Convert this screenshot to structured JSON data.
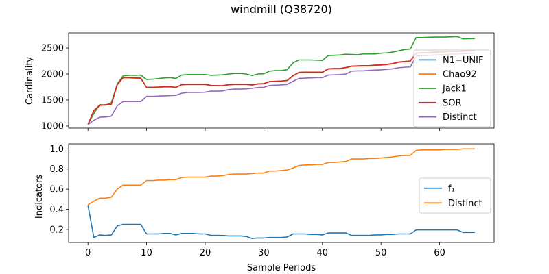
{
  "chart_data": {
    "title": "windmill (Q38720)",
    "xlabel": "Sample Periods",
    "x_ticks": [
      0,
      10,
      20,
      30,
      40,
      50,
      60
    ],
    "xlim": [
      -3.3,
      69.3
    ],
    "panels": [
      {
        "type": "line",
        "ylabel": "Cardinality",
        "ylim": [
          960,
          2790
        ],
        "y_ticks": [
          1000,
          1500,
          2000,
          2500
        ],
        "legend_position": "center-right",
        "grid": false,
        "series": [
          {
            "name": "N1−UNIF",
            "color": "#1f77b4",
            "x": [
              0,
              1,
              2,
              3,
              4,
              5,
              6,
              7,
              8,
              9,
              10,
              11,
              12,
              13,
              14,
              15,
              16,
              17,
              18,
              19,
              20,
              21,
              22,
              23,
              24,
              25,
              26,
              27,
              28,
              29,
              30,
              31,
              32,
              33,
              34,
              35,
              36,
              37,
              38,
              39,
              40,
              41,
              42,
              43,
              44,
              45,
              46,
              47,
              48,
              49,
              50,
              51,
              52,
              53,
              54,
              55,
              56,
              57,
              58,
              59,
              60,
              61,
              62,
              63,
              64,
              65,
              66
            ],
            "values": [
              1030,
              1280,
              1400,
              1410,
              1420,
              1800,
              1930,
              1930,
              1920,
              1920,
              1745,
              1745,
              1745,
              1755,
              1755,
              1745,
              1795,
              1800,
              1800,
              1800,
              1800,
              1780,
              1775,
              1775,
              1795,
              1800,
              1800,
              1800,
              1790,
              1810,
              1815,
              1855,
              1860,
              1865,
              1875,
              1970,
              2030,
              2035,
              2035,
              2035,
              2035,
              2100,
              2105,
              2105,
              2125,
              2150,
              2155,
              2160,
              2160,
              2170,
              2175,
              2185,
              2200,
              2230,
              2240,
              2250,
              2400,
              2410,
              2410,
              2420,
              2425,
              2430,
              2435,
              2435,
              2440,
              2445,
              2445
            ]
          },
          {
            "name": "Chao92",
            "color": "#ff7f0e",
            "x": [
              0,
              1,
              2,
              3,
              4,
              5,
              6,
              7,
              8,
              9,
              10,
              11,
              12,
              13,
              14,
              15,
              16,
              17,
              18,
              19,
              20,
              21,
              22,
              23,
              24,
              25,
              26,
              27,
              28,
              29,
              30,
              31,
              32,
              33,
              34,
              35,
              36,
              37,
              38,
              39,
              40,
              41,
              42,
              43,
              44,
              45,
              46,
              47,
              48,
              49,
              50,
              51,
              52,
              53,
              54,
              55,
              56,
              57,
              58,
              59,
              60,
              61,
              62,
              63,
              64,
              65,
              66
            ],
            "values": [
              1030,
              1270,
              1395,
              1405,
              1415,
              1795,
              1925,
              1925,
              1915,
              1915,
              1740,
              1740,
              1742,
              1750,
              1752,
              1742,
              1792,
              1797,
              1797,
              1797,
              1797,
              1777,
              1772,
              1772,
              1792,
              1797,
              1797,
              1797,
              1787,
              1807,
              1812,
              1852,
              1857,
              1862,
              1872,
              1965,
              2025,
              2030,
              2030,
              2030,
              2030,
              2095,
              2100,
              2100,
              2120,
              2145,
              2150,
              2155,
              2155,
              2165,
              2170,
              2180,
              2195,
              2225,
              2235,
              2245,
              2395,
              2405,
              2405,
              2415,
              2420,
              2425,
              2430,
              2430,
              2435,
              2440,
              2440
            ]
          },
          {
            "name": "Jack1",
            "color": "#2ca02c",
            "x": [
              0,
              1,
              2,
              3,
              4,
              5,
              6,
              7,
              8,
              9,
              10,
              11,
              12,
              13,
              14,
              15,
              16,
              17,
              18,
              19,
              20,
              21,
              22,
              23,
              24,
              25,
              26,
              27,
              28,
              29,
              30,
              31,
              32,
              33,
              34,
              35,
              36,
              37,
              38,
              39,
              40,
              41,
              42,
              43,
              44,
              45,
              46,
              47,
              48,
              49,
              50,
              51,
              52,
              53,
              54,
              55,
              56,
              57,
              58,
              59,
              60,
              61,
              62,
              63,
              64,
              65,
              66
            ],
            "values": [
              1030,
              1240,
              1410,
              1400,
              1450,
              1810,
              1965,
              1975,
              1975,
              1980,
              1895,
              1900,
              1910,
              1925,
              1930,
              1915,
              1980,
              1990,
              1990,
              1990,
              1990,
              1975,
              1980,
              1985,
              2000,
              2010,
              2010,
              2000,
              1970,
              2000,
              2005,
              2055,
              2065,
              2065,
              2085,
              2215,
              2270,
              2270,
              2270,
              2265,
              2260,
              2355,
              2360,
              2365,
              2380,
              2375,
              2370,
              2385,
              2385,
              2385,
              2400,
              2405,
              2420,
              2445,
              2470,
              2480,
              2700,
              2700,
              2705,
              2710,
              2710,
              2710,
              2715,
              2720,
              2675,
              2680,
              2680
            ]
          },
          {
            "name": "SOR",
            "color": "#d62728",
            "x": [
              0,
              1,
              2,
              3,
              4,
              5,
              6,
              7,
              8,
              9,
              10,
              11,
              12,
              13,
              14,
              15,
              16,
              17,
              18,
              19,
              20,
              21,
              22,
              23,
              24,
              25,
              26,
              27,
              28,
              29,
              30,
              31,
              32,
              33,
              34,
              35,
              36,
              37,
              38,
              39,
              40,
              41,
              42,
              43,
              44,
              45,
              46,
              47,
              48,
              49,
              50,
              51,
              52,
              53,
              54,
              55,
              56,
              57,
              58,
              59,
              60,
              61,
              62,
              63,
              64,
              65,
              66
            ],
            "values": [
              1030,
              1300,
              1400,
              1405,
              1420,
              1795,
              1930,
              1930,
              1925,
              1920,
              1745,
              1745,
              1750,
              1755,
              1755,
              1745,
              1795,
              1800,
              1800,
              1800,
              1800,
              1780,
              1775,
              1775,
              1795,
              1800,
              1800,
              1800,
              1790,
              1810,
              1815,
              1855,
              1860,
              1865,
              1875,
              1970,
              2030,
              2035,
              2035,
              2035,
              2035,
              2100,
              2105,
              2105,
              2125,
              2150,
              2155,
              2160,
              2160,
              2170,
              2175,
              2185,
              2200,
              2230,
              2240,
              2250,
              2400,
              2410,
              2410,
              2420,
              2425,
              2430,
              2435,
              2435,
              2440,
              2445,
              2445
            ]
          },
          {
            "name": "Distinct",
            "color": "#9467bd",
            "x": [
              0,
              1,
              2,
              3,
              4,
              5,
              6,
              7,
              8,
              9,
              10,
              11,
              12,
              13,
              14,
              15,
              16,
              17,
              18,
              19,
              20,
              21,
              22,
              23,
              24,
              25,
              26,
              27,
              28,
              29,
              30,
              31,
              32,
              33,
              34,
              35,
              36,
              37,
              38,
              39,
              40,
              41,
              42,
              43,
              44,
              45,
              46,
              47,
              48,
              49,
              50,
              51,
              52,
              53,
              54,
              55,
              56,
              57,
              58,
              59,
              60,
              61,
              62,
              63,
              64,
              65,
              66
            ],
            "values": [
              1030,
              1110,
              1170,
              1175,
              1190,
              1390,
              1470,
              1470,
              1470,
              1470,
              1570,
              1570,
              1575,
              1580,
              1585,
              1590,
              1630,
              1645,
              1645,
              1645,
              1650,
              1670,
              1670,
              1675,
              1700,
              1710,
              1710,
              1715,
              1725,
              1740,
              1745,
              1780,
              1785,
              1790,
              1800,
              1860,
              1915,
              1920,
              1925,
              1930,
              1930,
              1980,
              1985,
              1990,
              2000,
              2055,
              2060,
              2060,
              2070,
              2075,
              2080,
              2090,
              2100,
              2120,
              2130,
              2135,
              2345,
              2350,
              2355,
              2365,
              2370,
              2375,
              2380,
              2385,
              2390,
              2395,
              2400
            ]
          }
        ]
      },
      {
        "type": "line",
        "ylabel": "Indicators",
        "ylim": [
          0.07,
          1.05
        ],
        "y_ticks": [
          0.2,
          0.4,
          0.6,
          0.8,
          1.0
        ],
        "y_tick_labels": [
          "0.2",
          "0.4",
          "0.6",
          "0.8",
          "1.0"
        ],
        "legend_position": "center-right",
        "grid": false,
        "series": [
          {
            "name": "f₁",
            "color": "#1f77b4",
            "x": [
              0,
              1,
              2,
              3,
              4,
              5,
              6,
              7,
              8,
              9,
              10,
              11,
              12,
              13,
              14,
              15,
              16,
              17,
              18,
              19,
              20,
              21,
              22,
              23,
              24,
              25,
              26,
              27,
              28,
              29,
              30,
              31,
              32,
              33,
              34,
              35,
              36,
              37,
              38,
              39,
              40,
              41,
              42,
              43,
              44,
              45,
              46,
              47,
              48,
              49,
              50,
              51,
              52,
              53,
              54,
              55,
              56,
              57,
              58,
              59,
              60,
              61,
              62,
              63,
              64,
              65,
              66
            ],
            "values": [
              0.44,
              0.12,
              0.145,
              0.14,
              0.145,
              0.235,
              0.25,
              0.25,
              0.25,
              0.25,
              0.155,
              0.155,
              0.155,
              0.16,
              0.16,
              0.145,
              0.16,
              0.16,
              0.16,
              0.155,
              0.155,
              0.14,
              0.14,
              0.14,
              0.135,
              0.135,
              0.135,
              0.13,
              0.11,
              0.115,
              0.115,
              0.12,
              0.12,
              0.12,
              0.125,
              0.155,
              0.155,
              0.155,
              0.15,
              0.15,
              0.145,
              0.165,
              0.165,
              0.165,
              0.165,
              0.14,
              0.14,
              0.14,
              0.14,
              0.145,
              0.145,
              0.15,
              0.15,
              0.155,
              0.155,
              0.155,
              0.195,
              0.195,
              0.195,
              0.195,
              0.195,
              0.195,
              0.195,
              0.195,
              0.17,
              0.17,
              0.17
            ]
          },
          {
            "name": "Distinct",
            "color": "#ff7f0e",
            "x": [
              0,
              1,
              2,
              3,
              4,
              5,
              6,
              7,
              8,
              9,
              10,
              11,
              12,
              13,
              14,
              15,
              16,
              17,
              18,
              19,
              20,
              21,
              22,
              23,
              24,
              25,
              26,
              27,
              28,
              29,
              30,
              31,
              32,
              33,
              34,
              35,
              36,
              37,
              38,
              39,
              40,
              41,
              42,
              43,
              44,
              45,
              46,
              47,
              48,
              49,
              50,
              51,
              52,
              53,
              54,
              55,
              56,
              57,
              58,
              59,
              60,
              61,
              62,
              63,
              64,
              65,
              66
            ],
            "values": [
              0.445,
              0.48,
              0.51,
              0.51,
              0.52,
              0.6,
              0.64,
              0.64,
              0.64,
              0.64,
              0.685,
              0.685,
              0.69,
              0.69,
              0.695,
              0.695,
              0.715,
              0.72,
              0.72,
              0.72,
              0.72,
              0.73,
              0.73,
              0.735,
              0.745,
              0.75,
              0.75,
              0.75,
              0.755,
              0.76,
              0.76,
              0.78,
              0.78,
              0.785,
              0.79,
              0.81,
              0.835,
              0.84,
              0.84,
              0.845,
              0.845,
              0.865,
              0.865,
              0.87,
              0.875,
              0.9,
              0.9,
              0.9,
              0.905,
              0.905,
              0.91,
              0.915,
              0.92,
              0.93,
              0.935,
              0.935,
              0.985,
              0.99,
              0.99,
              0.99,
              0.99,
              0.995,
              0.995,
              0.995,
              1.0,
              1.0,
              1.0
            ]
          }
        ]
      }
    ]
  }
}
